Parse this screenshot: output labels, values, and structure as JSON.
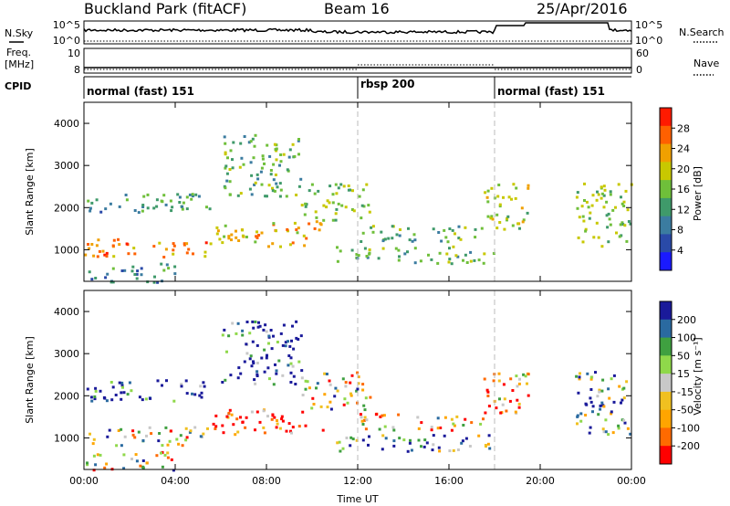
{
  "header": {
    "station": "Buckland Park (fitACF)",
    "beam": "Beam 16",
    "date": "25/Apr/2016"
  },
  "left_labels": {
    "nsky": "N.Sky",
    "freq_line1": "Freq.",
    "freq_line2": "[MHz]",
    "cpid": "CPID"
  },
  "right_labels": {
    "nsearch": "N.Search",
    "nave": "Nave"
  },
  "noise_panel": {
    "y_top": "10^5",
    "y_bottom": "10^0"
  },
  "freq_panel": {
    "y_top": "10",
    "y_bottom": "8",
    "right_top": "60",
    "right_bottom": "0"
  },
  "cpid_segments": [
    {
      "label": "normal (fast) 151",
      "start_hr": 0,
      "end_hr": 12
    },
    {
      "label": "rbsp 200",
      "start_hr": 12,
      "end_hr": 18
    },
    {
      "label": "normal (fast) 151",
      "start_hr": 18,
      "end_hr": 24
    }
  ],
  "colors": {
    "power_scale": [
      "#1a1aff",
      "#2a4aa8",
      "#3b7ca0",
      "#3f9a6a",
      "#6fbf3a",
      "#c8c800",
      "#f0a000",
      "#ff6000",
      "#ff1a00"
    ],
    "velocity_scale": [
      "#ff0000",
      "#ff6a00",
      "#ffa500",
      "#f0c020",
      "#c8c8c8",
      "#8fd84a",
      "#3fa040",
      "#2a6aa0",
      "#1a1a9a"
    ]
  },
  "chart_data": [
    {
      "type": "heatmap",
      "panel": "power",
      "ylabel": "Slant Range [km]",
      "ylim": [
        250,
        4500
      ],
      "y_ticks": [
        "1000",
        "2000",
        "3000",
        "4000"
      ],
      "colorbar_label": "Power [dB]",
      "colorbar_ticks": [
        "4",
        "8",
        "12",
        "16",
        "20",
        "24",
        "28"
      ],
      "colorbar_range": [
        0,
        32
      ],
      "x": [
        "00:00",
        "04:00",
        "08:00",
        "12:00",
        "16:00",
        "20:00",
        "00:00"
      ],
      "xlim_hr": [
        0,
        24
      ]
    },
    {
      "type": "heatmap",
      "panel": "velocity",
      "ylabel": "Slant Range [km]",
      "xlabel": "Time UT",
      "ylim": [
        250,
        4500
      ],
      "y_ticks": [
        "1000",
        "2000",
        "3000",
        "4000"
      ],
      "colorbar_label": "Velocity [m s⁻¹]",
      "colorbar_ticks": [
        "200",
        "100",
        "50",
        "15",
        "-15",
        "-50",
        "-100",
        "-200"
      ],
      "x": [
        "00:00",
        "04:00",
        "08:00",
        "12:00",
        "16:00",
        "20:00",
        "00:00"
      ],
      "xlim_hr": [
        0,
        24
      ]
    }
  ]
}
